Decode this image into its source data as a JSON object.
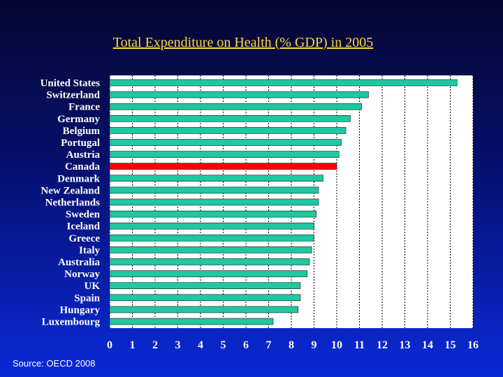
{
  "title": "Total Expenditure on Health (% GDP) in 2005",
  "source": "Source: OECD 2008",
  "colors": {
    "bar": "#1ec8a0",
    "highlight": "#ff0000",
    "plot_bg": "#ffffff",
    "text": "#ffffff",
    "title": "#ffd838"
  },
  "chart_data": {
    "type": "bar",
    "orientation": "horizontal",
    "title": "Total Expenditure on Health (% GDP) in 2005",
    "categories": [
      "United States",
      "Switzerland",
      "France",
      "Germany",
      "Belgium",
      "Portugal",
      "Austria",
      "Canada",
      "Denmark",
      "New Zealand",
      "Netherlands",
      "Sweden",
      "Iceland",
      "Greece",
      "Italy",
      "Australia",
      "Norway",
      "UK",
      "Spain",
      "Hungary",
      "Luxembourg"
    ],
    "values": [
      15.3,
      11.4,
      11.1,
      10.6,
      10.4,
      10.2,
      10.1,
      10.0,
      9.4,
      9.2,
      9.2,
      9.1,
      9.0,
      9.0,
      8.9,
      8.8,
      8.7,
      8.4,
      8.4,
      8.3,
      7.2
    ],
    "highlight": "Canada",
    "xlim": [
      0,
      16
    ],
    "xticks": [
      "0",
      "1",
      "2",
      "3",
      "4",
      "5",
      "6",
      "7",
      "8",
      "9",
      "10",
      "11",
      "12",
      "13",
      "14",
      "15",
      "16"
    ],
    "grid": true
  }
}
